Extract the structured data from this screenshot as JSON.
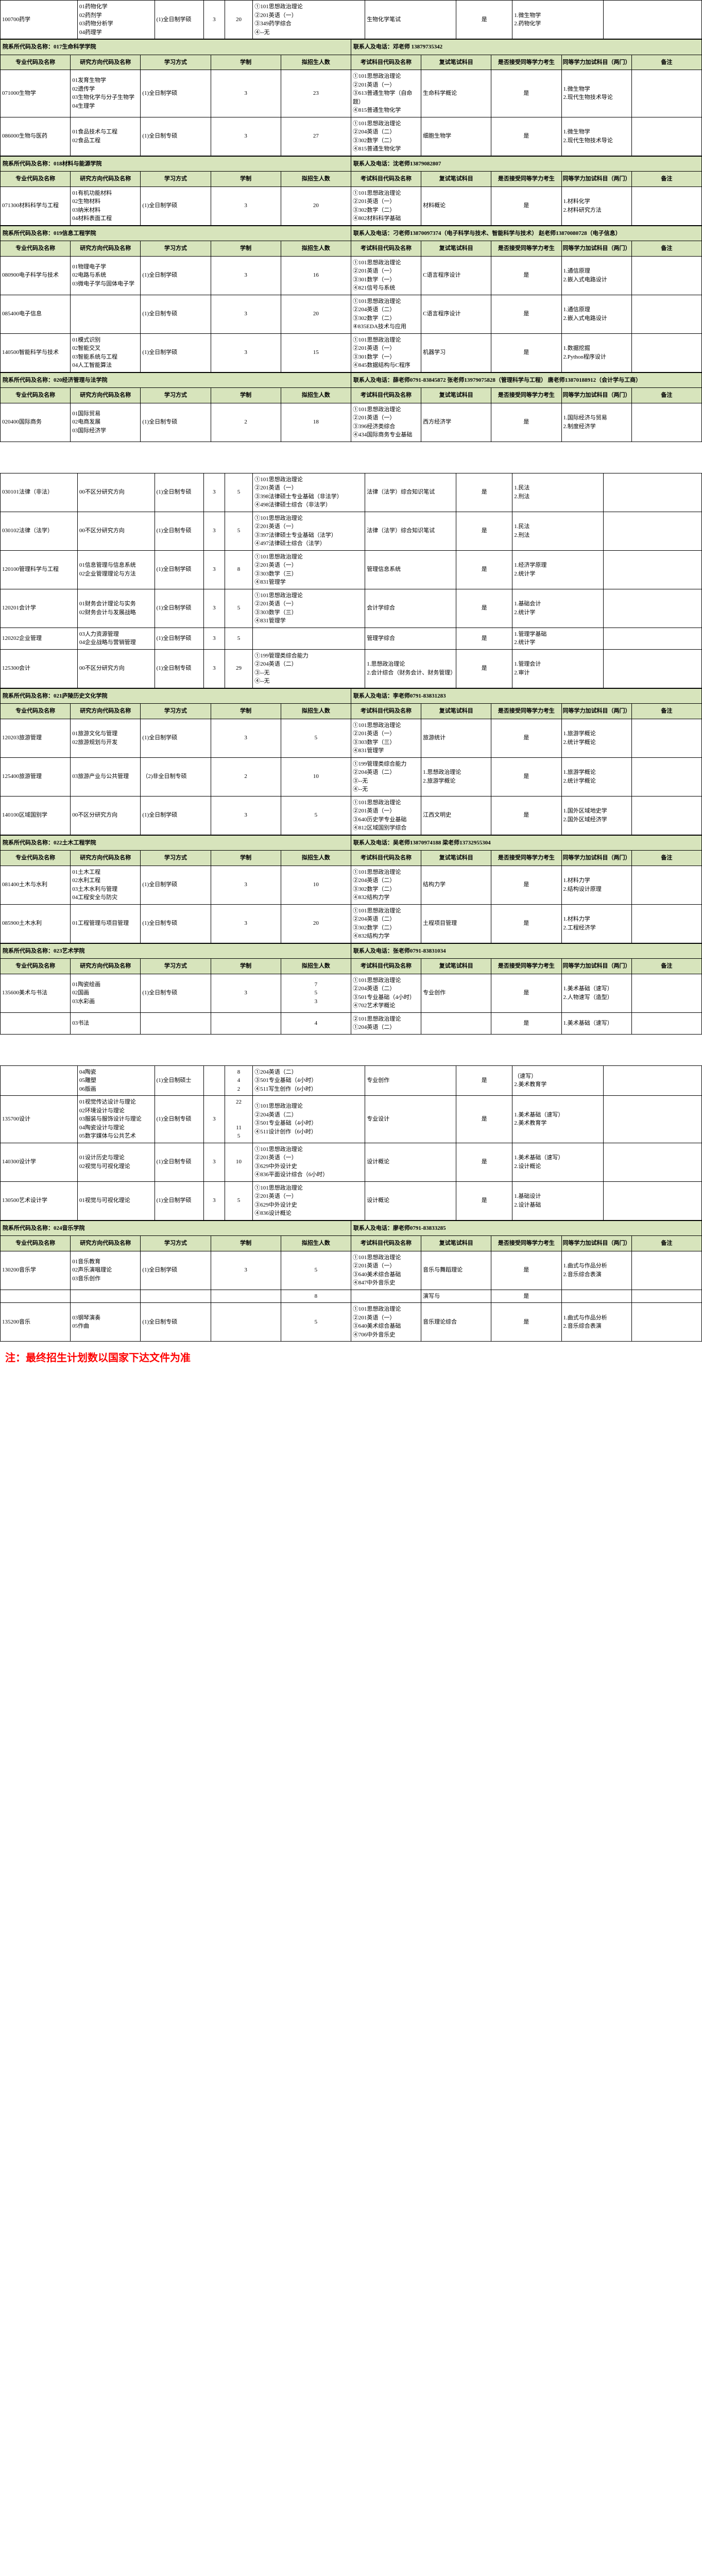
{
  "columns": [
    "专业代码及名称",
    "研究方向代码及名称",
    "学习方式",
    "学制",
    "拟招生人数",
    "考试科目代码及名称",
    "复试笔试科目",
    "是否接受同等学力考生",
    "同等学力加试科目（两门）",
    "备注"
  ],
  "departments": [
    {
      "dept_header": "",
      "contact": "",
      "show_header_rows": false,
      "rows": [
        {
          "cells": [
            "100700药学",
            "01药物化学\n02药剂学\n03药物分析学\n04药理学",
            "(1)全日制学硕",
            "3",
            "20",
            "①101思想政治理论\n②201英语（一）\n③349药学综合\n④--无",
            "生物化学笔试",
            "是",
            "1.微生物学\n2.药物化学",
            ""
          ]
        }
      ]
    },
    {
      "dept_header": "院系所代码及名称：017生命科学学院",
      "contact": "联系人及电话：邓老师 13879735342",
      "show_header_rows": true,
      "rows": [
        {
          "cells": [
            "071000生物学",
            "01发育生物学\n02遗传学\n03生物化学与分子生物学\n04生理学",
            "(1)全日制学硕",
            "3",
            "23",
            "①101思想政治理论\n②201英语（一）\n③613普通生物学（自命题）\n④815普通生物化学",
            "生命科学概论",
            "是",
            "1.微生物学\n2.现代生物技术导论",
            ""
          ]
        },
        {
          "cells": [
            "086000生物与医药",
            "01食品技术与工程\n02食品工程",
            "(1)全日制专硕",
            "3",
            "27",
            "①101思想政治理论\n②204英语（二）\n③302数学（二）\n④815普通生物化学",
            "细胞生物学",
            "是",
            "1.微生物学\n2.现代生物技术导论",
            ""
          ]
        }
      ]
    },
    {
      "dept_header": "院系所代码及名称：018材料与能源学院",
      "contact": "联系人及电话：沈老师13879082807",
      "show_header_rows": true,
      "rows": [
        {
          "cells": [
            "071300材料科学与工程",
            "01有机功能材料\n02生物材料\n03纳米材料\n04材料表面工程",
            "(1)全日制学硕",
            "3",
            "20",
            "①101思想政治理论\n②201英语（一）\n③302数学（二）\n④802材料科学基础",
            "材料概论",
            "是",
            "1.材料化学\n2.材料研究方法",
            ""
          ]
        }
      ]
    },
    {
      "dept_header": "院系所代码及名称：019信息工程学院",
      "contact": "联系人及电话：刁老师13870097374（电子科学与技术、智能科学与技术）  赵老师13870080728（电子信息）",
      "show_header_rows": true,
      "rows": [
        {
          "cells": [
            "080900电子科学与技术",
            "01物理电子学\n02电路与系统\n03微电子学与固体电子学",
            "(1)全日制学硕",
            "3",
            "16",
            "①101思想政治理论\n②201英语（一）\n③301数学（一）\n④821信号与系统",
            "C语言程序设计",
            "是",
            "1.通信原理\n2.嵌入式电路设计",
            ""
          ]
        },
        {
          "cells": [
            "085400电子信息",
            "",
            "(1)全日制专硕",
            "3",
            "20",
            "①101思想政治理论\n②204英语（二）\n③302数学（二）\n④835EDA技术与应用",
            "C语言程序设计",
            "是",
            "1.通信原理\n2.嵌入式电路设计",
            ""
          ]
        },
        {
          "cells": [
            "140500智能科学与技术",
            "01模式识别\n02智能交叉\n03智能系统与工程\n04人工智能算法",
            "(1)全日制学硕",
            "3",
            "15",
            "①101思想政治理论\n②201英语（一）\n③301数学（一）\n④845数据结构与C程序",
            "机器学习",
            "是",
            "1.数据挖掘\n2.Python程序设计",
            ""
          ]
        }
      ]
    },
    {
      "dept_header": "院系所代码及名称：020经济管理与法学院",
      "contact": "联系人及电话：薛老师0791-83845872  张老师13979075828（管理科学与工程）  唐老师13870188912（会计学与工商）",
      "show_header_rows": true,
      "rows": [
        {
          "cells": [
            "020400国际商务",
            "01国际贸易\n02电商发展\n03国际经济学",
            "(1)全日制专硕",
            "2",
            "18",
            "①101思想政治理论\n②201英语（一）\n③396经济类综合\n④434国际商务专业基础",
            "西方经济学",
            "是",
            "1.国际经济与贸易\n2.制度经济学",
            ""
          ]
        }
      ]
    }
  ],
  "page2_departments": [
    {
      "dept_header": "",
      "contact": "",
      "show_header_rows": false,
      "rows": [
        {
          "cells": [
            "030101法律（非法）",
            "00不区分研究方向",
            "(1)全日制专硕",
            "3",
            "5",
            "①101思想政治理论\n②201英语（一）\n③398法律硕士专业基础（非法学）\n④498法律硕士综合（非法学）",
            "法律（法学）综合知识笔试",
            "是",
            "1.民法\n2.刑法",
            ""
          ]
        },
        {
          "cells": [
            "030102法律（法学）",
            "00不区分研究方向",
            "(1)全日制专硕",
            "3",
            "5",
            "①101思想政治理论\n②201英语（一）\n③397法律硕士专业基础（法学）\n④497法律硕士综合（法学）",
            "法律（法学）综合知识笔试",
            "是",
            "1.民法\n2.刑法",
            ""
          ]
        },
        {
          "cells": [
            "120100管理科学与工程",
            "01信息管理与信息系统\n02企业管理理论与方法",
            "(1)全日制学硕",
            "3",
            "8",
            "①101思想政治理论\n②201英语（一）\n③303数学（三）\n④831管理学",
            "管理信息系统",
            "是",
            "1.经济学原理\n2.统计学",
            ""
          ]
        },
        {
          "cells": [
            "120201会计学",
            "01财务会计理论与实务\n02财务会计与发展战略",
            "(1)全日制学硕",
            "3",
            "5",
            "①101思想政治理论\n②201英语（一）\n③303数学（三）\n④831管理学",
            "会计学综合",
            "是",
            "1.基础会计\n2.统计学",
            ""
          ]
        },
        {
          "cells": [
            "120202企业管理",
            "03人力资源管理\n04企业战略与营销管理",
            "(1)全日制学硕",
            "3",
            "5",
            "",
            "管理学综合",
            "是",
            "1.管理学基础\n2.统计学",
            ""
          ]
        },
        {
          "cells": [
            "125300会计",
            "00不区分研究方向",
            "(1)全日制专硕",
            "3",
            "29",
            "①199管理类综合能力\n②204英语（二）\n③--无\n④--无",
            "1.思想政治理论\n2.会计综合（财务会计、财务管理）",
            "是",
            "1.管理会计\n2.审计",
            ""
          ]
        }
      ]
    },
    {
      "dept_header": "院系所代码及名称：021庐陵历史文化学院",
      "contact": "联系人及电话：李老师0791-83831283",
      "show_header_rows": true,
      "rows": [
        {
          "cells": [
            "120203旅游管理",
            "01旅游文化与管理\n02旅游规划与开发",
            "(1)全日制学硕",
            "3",
            "5",
            "①101思想政治理论\n②201英语（一）\n③303数学（三）\n④831管理学",
            "旅游统计",
            "是",
            "1.旅游学概论\n2.统计学概论",
            ""
          ]
        },
        {
          "cells": [
            "125400旅游管理",
            "03旅游产业与公共管理    ",
            "（2)非全日制专硕",
            "2",
            "10",
            "①199管理类综合能力\n②204英语（二）\n③--无\n④--无",
            "1.思想政治理论\n2.旅游学概论",
            "是",
            "1.旅游学概论\n2.统计学概论",
            ""
          ]
        },
        {
          "cells": [
            "140100区域国别学",
            "00不区分研究方向",
            "(1)全日制学硕",
            "3",
            "5",
            "①101思想政治理论\n②201英语（一）\n③640历史学专业基础\n④812区域国别学综合",
            "江西文明史",
            "是",
            "1.国外区域地史学\n2.国外区域经济学",
            ""
          ]
        }
      ]
    },
    {
      "dept_header": "院系所代码及名称：022土木工程学院",
      "contact": "联系人及电话：吴老师13870974188  梁老师13732955304",
      "show_header_rows": true,
      "rows": [
        {
          "cells": [
            "081400土木与水利",
            "01土木工程\n02水利工程\n03土木水利与管理\n04工程安全与防灾",
            "(1)全日制学硕",
            "3",
            "10",
            "①101思想政治理论\n②204英语（二）\n③302数学（二）\n④832结构力学",
            "结构力学",
            "是",
            "1.材料力学\n2.结构设计原理",
            ""
          ]
        },
        {
          "cells": [
            "085900土木水利",
            "01工程管理与项目管理",
            "(1)全日制专硕",
            "3",
            "20",
            "①101思想政治理论\n②204英语（二）\n③302数学（二）\n④832结构力学",
            "土程项目管理",
            "是",
            "1.材料力学\n2.工程经济学",
            ""
          ]
        }
      ]
    },
    {
      "dept_header": "院系所代码及名称：023艺术学院",
      "contact": "联系人及电话：张老师0791-83831034",
      "show_header_rows": true,
      "rows": [
        {
          "cells": [
            "135600美术与书法",
            "01陶瓷绘画\n02国画\n03水彩画",
            "(1)全日制专硕",
            "3",
            "7\n5\n3",
            "①101思想政治理论\n②204英语（二）\n③501专业基础（4小时）\n④702艺术学概论",
            "专业创作",
            "是",
            "1.美术基础（速写）\n2.人物速写（造型）",
            ""
          ]
        },
        {
          "cells": [
            "",
            "03书法",
            "",
            "",
            "4",
            "②101思想政治理论\n①204英语（二）",
            "",
            "是",
            "1.美术基础（速写）",
            ""
          ]
        }
      ]
    }
  ],
  "page3_departments": [
    {
      "dept_header": "",
      "contact": "",
      "show_header_rows": false,
      "rows": [
        {
          "cells": [
            "",
            "04陶瓷\n05雕塑\n06版画",
            "(1)全日制硕士",
            "",
            "8\n4\n2",
            "①204英语（二）\n③501专业基础（4小时）\n④511写生创作（6小时）",
            "专业创作",
            "是",
            "（速写）\n2.美术教育学",
            ""
          ]
        },
        {
          "cells": [
            "135700设计",
            "01视觉传达设计与理论\n02环境设计与理论\n03服装与服饰设计与理论\n04陶瓷设计与理论\n05数字媒体与公共艺术",
            "(1)全日制专硕",
            "3",
            "22\n\n\n11\n5",
            "①101思想政治理论\n②204英语（二）\n③501专业基础（4小时）\n④511设计创作（6小时）",
            "专业设计",
            "是",
            "1.美术基础（速写）\n2.美术教育学",
            ""
          ]
        },
        {
          "cells": [
            "140300设计学",
            "01设计历史与理论\n02视觉与可视化理论",
            "(1)全日制专硕",
            "3",
            "10",
            "①101思想政治理论\n②201英语（一）\n③629中外设计史\n④836平面设计综合（6小时）",
            "设计概论",
            "是",
            "1.美术基础（速写）\n2.设计概论",
            ""
          ]
        },
        {
          "cells": [
            "130500艺术设计学",
            "01视觉与可视化理论",
            "(1)全日制学硕",
            "3",
            "5",
            "①101思想政治理论\n②201英语（一）\n③629中外设计史\n④836设计概论",
            "设计概论",
            "是",
            "1.基础设计\n2.设计基础",
            ""
          ]
        }
      ]
    },
    {
      "dept_header": "院系所代码及名称：024音乐学院",
      "contact": "联系人及电话：廖老师0791-83833285",
      "show_header_rows": true,
      "rows": [
        {
          "cells": [
            "130200音乐学",
            "01音乐教育\n02声乐演唱理论\n03音乐创作",
            "(1)全日制学硕",
            "3",
            "5",
            "①101思想政治理论\n②201英语（一）\n③640美术综合基础\n④847中外音乐史",
            "音乐与舞蹈理论",
            "是",
            "1.曲式与作品分析\n2.音乐综合表演",
            ""
          ]
        },
        {
          "cells": [
            "",
            "",
            "",
            "",
            "8",
            "",
            "演写与",
            "是",
            "",
            ""
          ]
        },
        {
          "cells": [
            "135200音乐",
            "03钢琴演奏\n05作曲",
            "(1)全日制专硕",
            "",
            "5",
            "①101思想政治理论\n②201英语（一）\n③640美术综合基础\n④706中外音乐史",
            "音乐理论综合",
            "是",
            "1.曲式与作品分析\n2.音乐综合表演",
            ""
          ]
        }
      ]
    }
  ],
  "styling": {
    "header_bg": "#d7e4bc",
    "border_color": "#000000",
    "body_bg": "#ffffff",
    "note_color": "#ff0000",
    "font_family": "SimSun",
    "base_font_size": 11
  },
  "footnote": "注：最终招生计划数以国家下达文件为准"
}
